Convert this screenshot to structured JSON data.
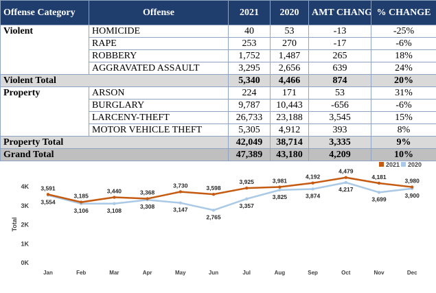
{
  "table": {
    "headers": {
      "category": "Offense Category",
      "offense": "Offense",
      "y2021": "2021",
      "y2020": "2020",
      "amt_change": "AMT CHANGE",
      "pct_change": "% CHANGE"
    },
    "groups": [
      {
        "category": "Violent",
        "rows": [
          {
            "offense": "HOMICIDE",
            "y2021": "40",
            "y2020": "53",
            "amt": "-13",
            "pct": "-25%"
          },
          {
            "offense": "RAPE",
            "y2021": "253",
            "y2020": "270",
            "amt": "-17",
            "pct": "-6%"
          },
          {
            "offense": "ROBBERY",
            "y2021": "1,752",
            "y2020": "1,487",
            "amt": "265",
            "pct": "18%"
          },
          {
            "offense": "AGGRAVATED ASSAULT",
            "y2021": "3,295",
            "y2020": "2,656",
            "amt": "639",
            "pct": "24%"
          }
        ],
        "total": {
          "label": "Violent Total",
          "y2021": "5,340",
          "y2020": "4,466",
          "amt": "874",
          "pct": "20%"
        }
      },
      {
        "category": "Property",
        "rows": [
          {
            "offense": "ARSON",
            "y2021": "224",
            "y2020": "171",
            "amt": "53",
            "pct": "31%"
          },
          {
            "offense": "BURGLARY",
            "y2021": "9,787",
            "y2020": "10,443",
            "amt": "-656",
            "pct": "-6%"
          },
          {
            "offense": "LARCENY-THEFT",
            "y2021": "26,733",
            "y2020": "23,188",
            "amt": "3,545",
            "pct": "15%"
          },
          {
            "offense": "MOTOR VEHICLE THEFT",
            "y2021": "5,305",
            "y2020": "4,912",
            "amt": "393",
            "pct": "8%"
          }
        ],
        "total": {
          "label": "Property Total",
          "y2021": "42,049",
          "y2020": "38,714",
          "amt": "3,335",
          "pct": "9%"
        }
      }
    ],
    "grand_total": {
      "label": "Grand Total",
      "y2021": "47,389",
      "y2020": "43,180",
      "amt": "4,209",
      "pct": "10%"
    }
  },
  "chart_data": {
    "type": "line",
    "title": "",
    "xlabel": "",
    "ylabel": "Total",
    "categories": [
      "Jan",
      "Feb",
      "Mar",
      "Apr",
      "May",
      "Jun",
      "Jul",
      "Aug",
      "Sep",
      "Oct",
      "Nov",
      "Dec"
    ],
    "series": [
      {
        "name": "2021",
        "color": "#c55a11",
        "values": [
          3591,
          3185,
          3440,
          3368,
          3730,
          3598,
          3925,
          3981,
          4192,
          4479,
          4181,
          3980
        ]
      },
      {
        "name": "2020",
        "color": "#a9c9e6",
        "values": [
          3554,
          3106,
          3108,
          3308,
          3147,
          2765,
          3357,
          3825,
          3874,
          4217,
          3699,
          3900
        ]
      }
    ],
    "ylim": [
      0,
      4500
    ],
    "yticks": [
      0,
      1000,
      2000,
      3000,
      4000
    ],
    "ytick_labels": [
      "0K",
      "1K",
      "2K",
      "3K",
      "4K"
    ],
    "legend": "top-right",
    "grid": false
  }
}
